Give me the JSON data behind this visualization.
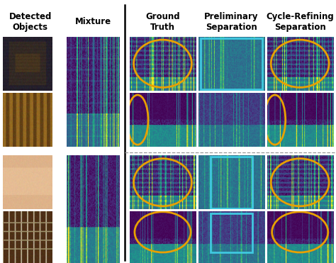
{
  "col_headers": [
    "Ground\nTruth",
    "Preliminary\nSeparation",
    "Cycle-Refining\nSeparation"
  ],
  "header_fontsize": 8.5,
  "header_fontweight": "bold",
  "bg_color": "#ffffff",
  "orange_color": "#E8A000",
  "cyan_color": "#40C8E0",
  "divider_color": "#999999",
  "layout": {
    "fig_width": 4.74,
    "fig_height": 3.71,
    "dpi": 100
  }
}
